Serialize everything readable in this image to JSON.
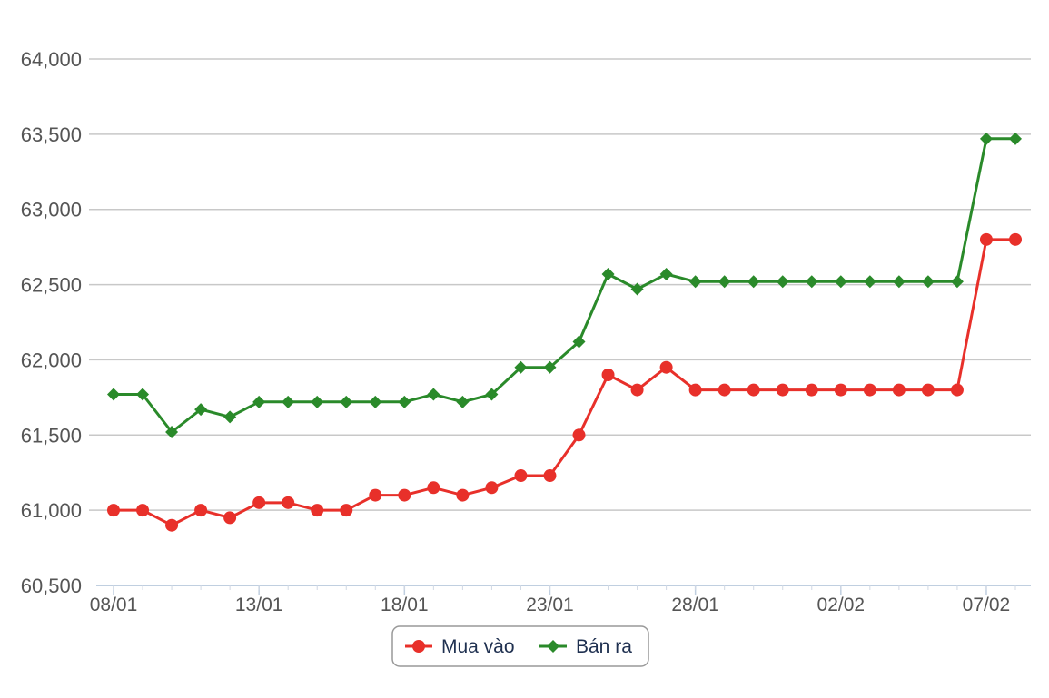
{
  "chart_data": {
    "type": "line",
    "title": "",
    "xlabel": "",
    "ylabel": "",
    "ylim": [
      60500,
      64000
    ],
    "y_ticks": [
      60500,
      61000,
      61500,
      62000,
      62500,
      63000,
      63500,
      64000
    ],
    "y_tick_labels": [
      "60,500",
      "61,000",
      "61,500",
      "62,000",
      "62,500",
      "63,000",
      "63,500",
      "64,000"
    ],
    "x_tick_labels": [
      "08/01",
      "13/01",
      "18/01",
      "23/01",
      "28/01",
      "02/02",
      "07/02"
    ],
    "x_tick_indices": [
      0,
      5,
      10,
      15,
      20,
      25,
      30
    ],
    "grid": true,
    "legend_position": "bottom-center",
    "series": [
      {
        "name": "Mua vào",
        "color": "#e8302a",
        "marker": "circle",
        "values": [
          61000,
          61000,
          60900,
          61000,
          60950,
          61050,
          61050,
          61000,
          61000,
          61100,
          61100,
          61150,
          61100,
          61150,
          61230,
          61230,
          61500,
          61900,
          61800,
          61950,
          61800,
          61800,
          61800,
          61800,
          61800,
          61800,
          61800,
          61800,
          61800,
          61800,
          62800,
          62800
        ]
      },
      {
        "name": "Bán ra",
        "color": "#2a8a2a",
        "marker": "diamond",
        "values": [
          61770,
          61770,
          61520,
          61670,
          61620,
          61720,
          61720,
          61720,
          61720,
          61720,
          61720,
          61770,
          61720,
          61770,
          61950,
          61950,
          62120,
          62570,
          62470,
          62570,
          62520,
          62520,
          62520,
          62520,
          62520,
          62520,
          62520,
          62520,
          62520,
          62520,
          63470,
          63470
        ]
      }
    ]
  }
}
